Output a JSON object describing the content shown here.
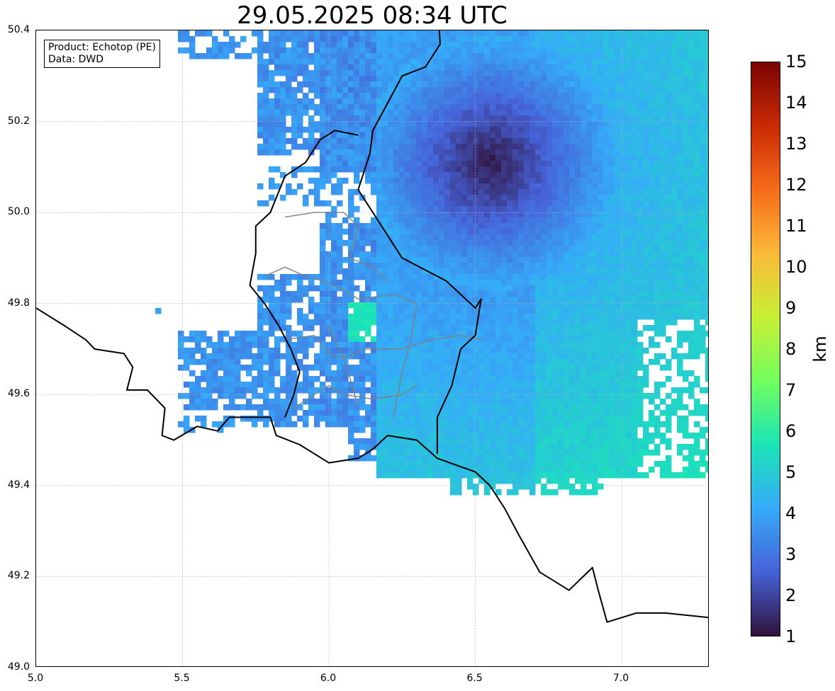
{
  "title": "29.05.2025 08:34 UTC",
  "info_box": {
    "line1": "Product: Echotop (PE)",
    "line2": "Data: DWD"
  },
  "map": {
    "xlim": [
      5.0,
      7.3
    ],
    "ylim": [
      49.0,
      50.4
    ],
    "x_ticks": [
      "5.0",
      "5.5",
      "6.0",
      "6.5",
      "7.0"
    ],
    "y_ticks": [
      "50.4",
      "50.2",
      "50.0",
      "49.8",
      "49.6",
      "49.4",
      "49.2",
      "49.0"
    ],
    "grid": true,
    "radar_center": {
      "lon": 6.55,
      "lat": 50.11
    },
    "borders_lonlat": {
      "france_border": [
        [
          5.0,
          49.79
        ],
        [
          5.1,
          49.75
        ],
        [
          5.17,
          49.72
        ],
        [
          5.2,
          49.7
        ],
        [
          5.3,
          49.69
        ],
        [
          5.33,
          49.66
        ],
        [
          5.31,
          49.61
        ],
        [
          5.38,
          49.61
        ],
        [
          5.44,
          49.57
        ],
        [
          5.43,
          49.51
        ],
        [
          5.47,
          49.5
        ],
        [
          5.55,
          49.53
        ],
        [
          5.62,
          49.52
        ],
        [
          5.66,
          49.55
        ],
        [
          5.72,
          49.55
        ],
        [
          5.8,
          49.55
        ],
        [
          5.82,
          49.51
        ],
        [
          5.9,
          49.49
        ],
        [
          6.0,
          49.45
        ],
        [
          6.1,
          49.46
        ],
        [
          6.15,
          49.48
        ],
        [
          6.2,
          49.51
        ],
        [
          6.3,
          49.5
        ],
        [
          6.37,
          49.46
        ],
        [
          6.5,
          49.43
        ],
        [
          6.55,
          49.4
        ],
        [
          6.6,
          49.35
        ],
        [
          6.65,
          49.29
        ],
        [
          6.72,
          49.21
        ],
        [
          6.82,
          49.17
        ],
        [
          6.9,
          49.22
        ],
        [
          6.92,
          49.17
        ],
        [
          6.95,
          49.1
        ],
        [
          7.05,
          49.12
        ],
        [
          7.15,
          49.12
        ],
        [
          7.3,
          49.11
        ]
      ],
      "luxembourg_germany_border": [
        [
          6.37,
          50.47
        ],
        [
          6.38,
          50.37
        ],
        [
          6.33,
          50.32
        ],
        [
          6.25,
          50.3
        ],
        [
          6.2,
          50.24
        ],
        [
          6.15,
          50.18
        ],
        [
          6.14,
          50.13
        ],
        [
          6.1,
          50.05
        ],
        [
          6.15,
          50.0
        ],
        [
          6.2,
          49.95
        ],
        [
          6.25,
          49.9
        ],
        [
          6.4,
          49.85
        ],
        [
          6.5,
          49.79
        ],
        [
          6.52,
          49.81
        ],
        [
          6.5,
          49.73
        ],
        [
          6.45,
          49.7
        ],
        [
          6.42,
          49.62
        ],
        [
          6.37,
          49.55
        ],
        [
          6.37,
          49.47
        ]
      ],
      "belgium_border": [
        [
          6.1,
          50.17
        ],
        [
          6.02,
          50.18
        ],
        [
          5.97,
          50.16
        ],
        [
          5.92,
          50.11
        ],
        [
          5.85,
          50.08
        ],
        [
          5.8,
          50.0
        ],
        [
          5.75,
          49.97
        ],
        [
          5.75,
          49.91
        ],
        [
          5.73,
          49.84
        ],
        [
          5.78,
          49.8
        ],
        [
          5.83,
          49.75
        ],
        [
          5.87,
          49.7
        ],
        [
          5.9,
          49.65
        ],
        [
          5.88,
          49.6
        ],
        [
          5.85,
          49.55
        ]
      ],
      "internal_borders": [
        [
          [
            5.85,
            49.99
          ],
          [
            5.95,
            50.0
          ],
          [
            6.05,
            50.0
          ],
          [
            6.1,
            49.97
          ],
          [
            6.07,
            49.9
          ],
          [
            6.15,
            49.88
          ],
          [
            6.2,
            49.85
          ]
        ],
        [
          [
            5.78,
            49.86
          ],
          [
            5.85,
            49.88
          ],
          [
            5.92,
            49.86
          ],
          [
            5.98,
            49.85
          ],
          [
            6.05,
            49.83
          ],
          [
            6.1,
            49.81
          ],
          [
            6.22,
            49.82
          ],
          [
            6.3,
            49.8
          ]
        ],
        [
          [
            5.85,
            49.72
          ],
          [
            5.95,
            49.73
          ],
          [
            6.0,
            49.69
          ],
          [
            6.05,
            49.68
          ],
          [
            6.12,
            49.7
          ],
          [
            6.25,
            49.7
          ],
          [
            6.35,
            49.72
          ],
          [
            6.45,
            49.73
          ],
          [
            6.52,
            49.72
          ]
        ],
        [
          [
            5.88,
            49.57
          ],
          [
            5.95,
            49.6
          ],
          [
            6.0,
            49.62
          ],
          [
            6.05,
            49.6
          ],
          [
            6.15,
            49.59
          ],
          [
            6.25,
            49.6
          ],
          [
            6.3,
            49.62
          ]
        ],
        [
          [
            6.0,
            49.75
          ],
          [
            6.05,
            49.68
          ],
          [
            6.08,
            49.62
          ],
          [
            6.1,
            49.57
          ]
        ],
        [
          [
            6.3,
            49.8
          ],
          [
            6.28,
            49.72
          ],
          [
            6.25,
            49.65
          ],
          [
            6.22,
            49.55
          ]
        ]
      ]
    }
  },
  "colorbar": {
    "label": "km",
    "min": 1,
    "max": 15,
    "ticks": [
      "1",
      "2",
      "3",
      "4",
      "5",
      "6",
      "7",
      "8",
      "9",
      "10",
      "11",
      "12",
      "13",
      "14",
      "15"
    ],
    "colormap": "turbo",
    "colors": [
      "#30123b",
      "#4662d7",
      "#36aaf9",
      "#1ae4b6",
      "#72fe5e",
      "#c8ef34",
      "#faba39",
      "#f66b19",
      "#ca2a04",
      "#7a0403"
    ]
  }
}
